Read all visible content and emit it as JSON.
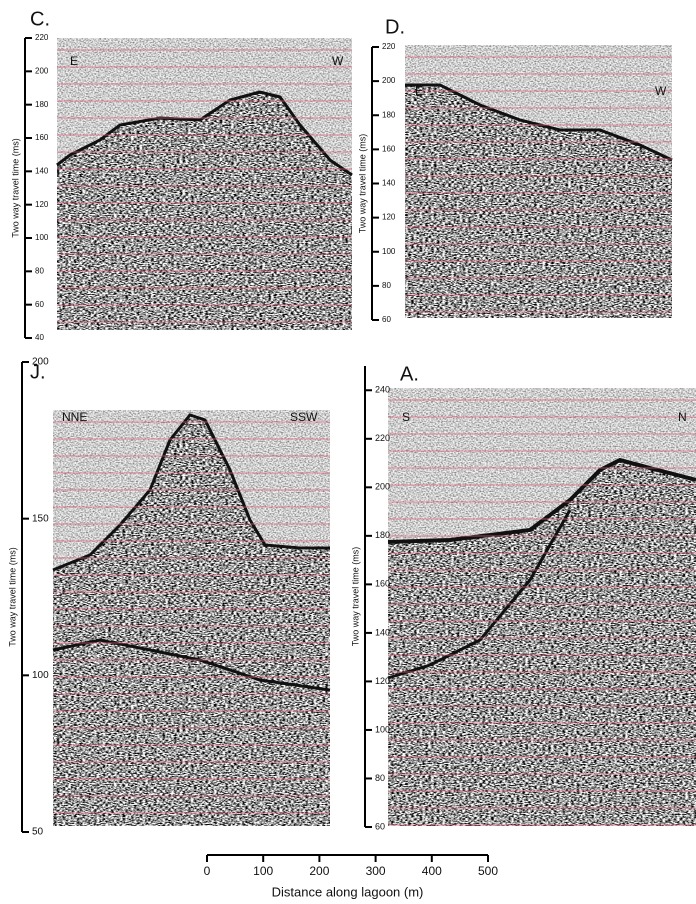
{
  "panels": [
    {
      "label": "C.",
      "left": "E",
      "right": "W",
      "y_label": "Two way travel time (ms)",
      "ylim": [
        40,
        220
      ],
      "yticks": [
        40,
        60,
        80,
        100,
        120,
        140,
        160,
        180,
        200,
        220
      ]
    },
    {
      "label": "D.",
      "left": "E",
      "right": "W",
      "y_label": "Two way travel time (ms)",
      "ylim": [
        60,
        220
      ],
      "yticks": [
        60,
        80,
        100,
        120,
        140,
        160,
        180,
        200,
        220
      ]
    },
    {
      "label": "J.",
      "left": "NNE",
      "right": "SSW",
      "y_label": "Two way travel time (ms)",
      "ylim": [
        50,
        200
      ],
      "yticks": [
        50,
        100,
        150,
        200
      ]
    },
    {
      "label": "A.",
      "left": "S",
      "right": "N",
      "y_label": "Two way travel time (ms)",
      "ylim": [
        60,
        250
      ],
      "yticks": [
        60,
        80,
        100,
        120,
        140,
        160,
        180,
        200,
        220,
        240
      ]
    }
  ],
  "scale_bar": {
    "label": "Distance along lagoon (m)",
    "xlim": [
      0,
      500
    ],
    "xticks": [
      0,
      100,
      200,
      300,
      400,
      500
    ]
  }
}
